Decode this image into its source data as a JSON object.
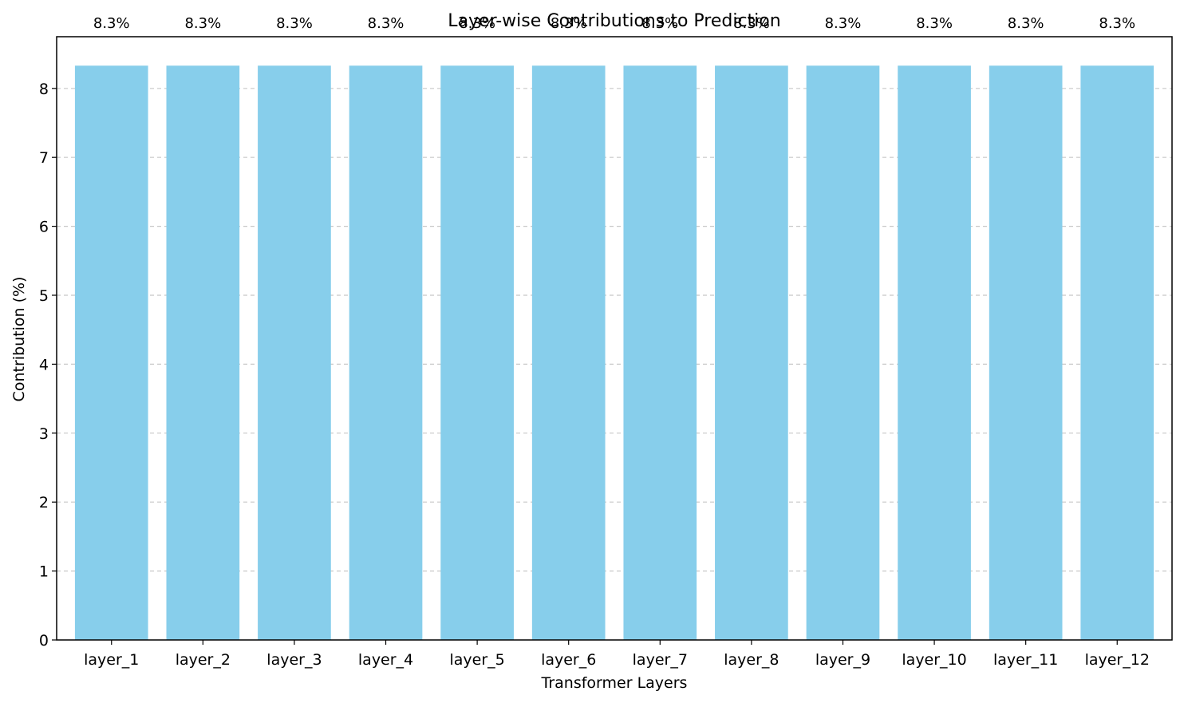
{
  "chart_data": {
    "type": "bar",
    "title": "Layer-wise Contributions to Prediction",
    "xlabel": "Transformer Layers",
    "ylabel": "Contribution (%)",
    "categories": [
      "layer_1",
      "layer_2",
      "layer_3",
      "layer_4",
      "layer_5",
      "layer_6",
      "layer_7",
      "layer_8",
      "layer_9",
      "layer_10",
      "layer_11",
      "layer_12"
    ],
    "values": [
      8.33,
      8.33,
      8.33,
      8.33,
      8.33,
      8.33,
      8.33,
      8.33,
      8.33,
      8.33,
      8.33,
      8.33
    ],
    "data_labels": [
      "8.3%",
      "8.3%",
      "8.3%",
      "8.3%",
      "8.3%",
      "8.3%",
      "8.3%",
      "8.3%",
      "8.3%",
      "8.3%",
      "8.3%",
      "8.3%"
    ],
    "ylim": [
      0,
      8.75
    ],
    "yticks": [
      0,
      1,
      2,
      3,
      4,
      5,
      6,
      7,
      8
    ],
    "grid": "y-dashed",
    "colors": {
      "bar": "#87CEEB",
      "grid": "#c8c8c8",
      "axis": "#000000"
    }
  }
}
